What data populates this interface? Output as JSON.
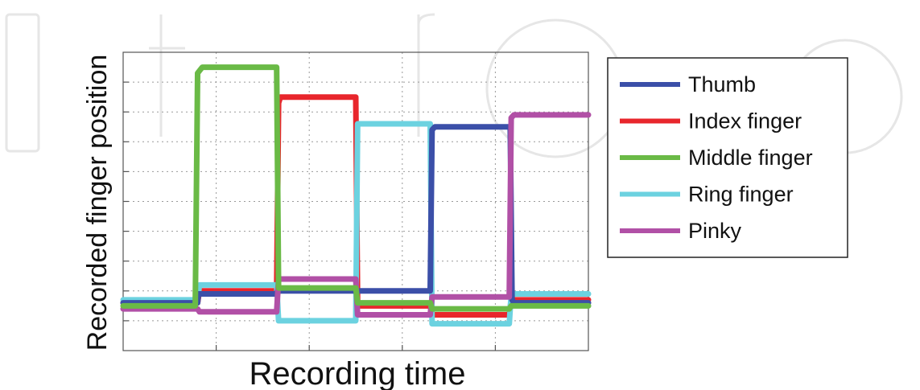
{
  "chart_data": {
    "type": "line",
    "title": "",
    "xlabel": "Recording time",
    "ylabel": "Recorded finger position",
    "xlim": [
      0,
      100
    ],
    "ylim": [
      0,
      10
    ],
    "grid": true,
    "legend_position": "right",
    "series": [
      {
        "name": "Thumb",
        "color": "#3b4fa8",
        "x": [
          0,
          16,
          16.2,
          33,
          33.2,
          50,
          50.2,
          66,
          66.4,
          67,
          83.2,
          83.6,
          84,
          100
        ],
        "y": [
          1.6,
          1.6,
          1.9,
          1.9,
          2.0,
          2.0,
          2.0,
          2.0,
          7.4,
          7.5,
          7.5,
          1.7,
          1.6,
          1.6
        ]
      },
      {
        "name": "Index finger",
        "color": "#e8262c",
        "x": [
          0,
          16,
          16.4,
          33,
          33.4,
          33.8,
          50,
          50.4,
          50.8,
          66,
          66.4,
          83,
          83.4,
          84,
          100
        ],
        "y": [
          1.6,
          1.6,
          2.0,
          2.0,
          8.3,
          8.5,
          8.5,
          1.5,
          1.5,
          1.5,
          1.2,
          1.2,
          1.7,
          1.7,
          1.7
        ]
      },
      {
        "name": "Middle finger",
        "color": "#6aba46",
        "x": [
          0,
          15.5,
          16,
          17,
          33,
          33.4,
          50,
          50.4,
          66,
          66.4,
          83,
          83.4,
          100
        ],
        "y": [
          1.5,
          1.5,
          9.3,
          9.5,
          9.5,
          2.1,
          2.1,
          1.6,
          1.6,
          1.4,
          1.4,
          1.5,
          1.5
        ]
      },
      {
        "name": "Ring finger",
        "color": "#6cd2e0",
        "x": [
          0,
          16,
          16.4,
          33,
          33.4,
          50,
          50.4,
          66,
          66.4,
          83,
          83.4,
          100
        ],
        "y": [
          1.7,
          1.7,
          2.2,
          2.2,
          1.0,
          1.0,
          7.6,
          7.6,
          0.9,
          0.9,
          1.9,
          1.9
        ]
      },
      {
        "name": "Pinky",
        "color": "#b150a6",
        "x": [
          0,
          16,
          16.4,
          33,
          33.4,
          50,
          50.4,
          66,
          66.4,
          83,
          83.4,
          84,
          100
        ],
        "y": [
          1.4,
          1.4,
          1.3,
          1.3,
          2.4,
          2.4,
          1.2,
          1.2,
          1.8,
          1.8,
          7.8,
          7.9,
          7.9
        ]
      }
    ]
  }
}
